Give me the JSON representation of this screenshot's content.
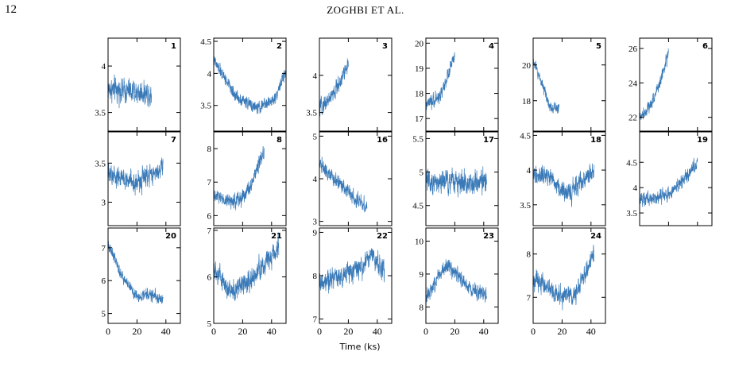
{
  "page": {
    "number": "12",
    "running_head": "ZOGHBI ET AL."
  },
  "figure": {
    "xlabel": "Time (ks)",
    "x_ticks": [
      "0",
      "20",
      "40"
    ]
  },
  "chart_data": [
    {
      "type": "line",
      "label": "1",
      "xlim": [
        0,
        50
      ],
      "ylim": [
        3.3,
        4.3
      ],
      "y_ticks": [
        3.5,
        4
      ],
      "y_tick_labels": [
        "3.5",
        "4"
      ],
      "duration": 30,
      "trend": [
        [
          0,
          3.75
        ],
        [
          30,
          3.7
        ]
      ],
      "noise": 0.16,
      "color": "#3a7ab8"
    },
    {
      "type": "line",
      "label": "2",
      "xlim": [
        0,
        50
      ],
      "ylim": [
        3.1,
        4.55
      ],
      "y_ticks": [
        3.5,
        4,
        4.5
      ],
      "y_tick_labels": [
        "3.5",
        "4",
        "4.5"
      ],
      "duration": 50,
      "trend": [
        [
          0,
          4.2
        ],
        [
          15,
          3.65
        ],
        [
          30,
          3.45
        ],
        [
          42,
          3.6
        ],
        [
          50,
          4.05
        ]
      ],
      "noise": 0.12,
      "color": "#3a7ab8"
    },
    {
      "type": "line",
      "label": "3",
      "xlim": [
        0,
        50
      ],
      "ylim": [
        3.25,
        4.5
      ],
      "y_ticks": [
        3.5,
        4
      ],
      "y_tick_labels": [
        "3.5",
        "4"
      ],
      "duration": 20,
      "trend": [
        [
          0,
          3.55
        ],
        [
          10,
          3.75
        ],
        [
          20,
          4.15
        ]
      ],
      "noise": 0.14,
      "color": "#3a7ab8"
    },
    {
      "type": "line",
      "label": "4",
      "xlim": [
        0,
        50
      ],
      "ylim": [
        16.5,
        20.2
      ],
      "y_ticks": [
        17,
        18,
        19,
        20
      ],
      "y_tick_labels": [
        "17",
        "18",
        "19",
        "20"
      ],
      "duration": 20,
      "trend": [
        [
          0,
          17.5
        ],
        [
          10,
          17.9
        ],
        [
          20,
          19.5
        ]
      ],
      "noise": 0.35,
      "color": "#3a7ab8"
    },
    {
      "type": "line",
      "label": "5",
      "xlim": [
        0,
        50
      ],
      "ylim": [
        16.3,
        21.5
      ],
      "y_ticks": [
        18,
        20
      ],
      "y_tick_labels": [
        "18",
        "20"
      ],
      "duration": 18,
      "trend": [
        [
          0,
          20.2
        ],
        [
          8,
          18.6
        ],
        [
          12,
          17.6
        ],
        [
          18,
          17.7
        ]
      ],
      "noise": 0.4,
      "color": "#3a7ab8"
    },
    {
      "type": "line",
      "label": "6",
      "xlim": [
        0,
        50
      ],
      "ylim": [
        21.2,
        26.6
      ],
      "y_ticks": [
        22,
        24,
        26
      ],
      "y_tick_labels": [
        "22",
        "24",
        "26"
      ],
      "duration": 20,
      "trend": [
        [
          0,
          22
        ],
        [
          8,
          22.8
        ],
        [
          14,
          24
        ],
        [
          20,
          25.8
        ]
      ],
      "noise": 0.45,
      "color": "#3a7ab8"
    },
    {
      "type": "line",
      "label": "7",
      "xlim": [
        0,
        50
      ],
      "ylim": [
        2.7,
        3.9
      ],
      "y_ticks": [
        3,
        3.5
      ],
      "y_tick_labels": [
        "3",
        "3.5"
      ],
      "duration": 38,
      "trend": [
        [
          0,
          3.35
        ],
        [
          20,
          3.25
        ],
        [
          38,
          3.45
        ]
      ],
      "noise": 0.17,
      "color": "#3a7ab8"
    },
    {
      "type": "line",
      "label": "8",
      "xlim": [
        0,
        50
      ],
      "ylim": [
        5.7,
        8.5
      ],
      "y_ticks": [
        6,
        7,
        8
      ],
      "y_tick_labels": [
        "6",
        "7",
        "8"
      ],
      "duration": 35,
      "trend": [
        [
          0,
          6.6
        ],
        [
          12,
          6.4
        ],
        [
          22,
          6.6
        ],
        [
          35,
          7.9
        ]
      ],
      "noise": 0.28,
      "color": "#3a7ab8"
    },
    {
      "type": "line",
      "label": "16",
      "xlim": [
        0,
        50
      ],
      "ylim": [
        2.9,
        5.1
      ],
      "y_ticks": [
        3,
        4,
        5
      ],
      "y_tick_labels": [
        "3",
        "4",
        "5"
      ],
      "duration": 33,
      "trend": [
        [
          0,
          4.4
        ],
        [
          10,
          4
        ],
        [
          20,
          3.7
        ],
        [
          33,
          3.3
        ]
      ],
      "noise": 0.22,
      "color": "#3a7ab8"
    },
    {
      "type": "line",
      "label": "17",
      "xlim": [
        0,
        50
      ],
      "ylim": [
        4.2,
        5.6
      ],
      "y_ticks": [
        4.5,
        5,
        5.5
      ],
      "y_tick_labels": [
        "4.5",
        "5",
        "5.5"
      ],
      "duration": 42,
      "trend": [
        [
          0,
          4.9
        ],
        [
          20,
          4.85
        ],
        [
          42,
          4.85
        ]
      ],
      "noise": 0.24,
      "color": "#3a7ab8"
    },
    {
      "type": "line",
      "label": "18",
      "xlim": [
        0,
        50
      ],
      "ylim": [
        3.2,
        4.55
      ],
      "y_ticks": [
        3.5,
        4,
        4.5
      ],
      "y_tick_labels": [
        "3.5",
        "4",
        "4.5"
      ],
      "duration": 42,
      "trend": [
        [
          0,
          3.95
        ],
        [
          12,
          3.9
        ],
        [
          22,
          3.65
        ],
        [
          42,
          4.0
        ]
      ],
      "noise": 0.18,
      "color": "#3a7ab8"
    },
    {
      "type": "line",
      "label": "19",
      "xlim": [
        0,
        50
      ],
      "ylim": [
        3.25,
        5.1
      ],
      "y_ticks": [
        3.5,
        4,
        4.5
      ],
      "y_tick_labels": [
        "3.5",
        "4",
        "4.5"
      ],
      "duration": 40,
      "trend": [
        [
          0,
          3.75
        ],
        [
          20,
          3.85
        ],
        [
          30,
          4.15
        ],
        [
          40,
          4.5
        ]
      ],
      "noise": 0.18,
      "color": "#3a7ab8"
    },
    {
      "type": "line",
      "label": "20",
      "xlim": [
        0,
        50
      ],
      "ylim": [
        4.7,
        7.6
      ],
      "y_ticks": [
        5,
        6,
        7
      ],
      "y_tick_labels": [
        "5",
        "6",
        "7"
      ],
      "duration": 38,
      "trend": [
        [
          0,
          7.1
        ],
        [
          10,
          6.1
        ],
        [
          20,
          5.5
        ],
        [
          28,
          5.6
        ],
        [
          38,
          5.4
        ]
      ],
      "noise": 0.22,
      "color": "#3a7ab8"
    },
    {
      "type": "line",
      "label": "21",
      "xlim": [
        0,
        50
      ],
      "ylim": [
        5,
        7.05
      ],
      "y_ticks": [
        5,
        6,
        7
      ],
      "y_tick_labels": [
        "5",
        "6",
        "7"
      ],
      "duration": 45,
      "trend": [
        [
          0,
          6.1
        ],
        [
          12,
          5.7
        ],
        [
          25,
          5.9
        ],
        [
          45,
          6.6
        ]
      ],
      "noise": 0.3,
      "color": "#3a7ab8"
    },
    {
      "type": "line",
      "label": "22",
      "xlim": [
        0,
        50
      ],
      "ylim": [
        6.9,
        9.1
      ],
      "y_ticks": [
        7,
        8,
        9
      ],
      "y_tick_labels": [
        "7",
        "8",
        "9"
      ],
      "duration": 45,
      "trend": [
        [
          0,
          7.8
        ],
        [
          15,
          8.0
        ],
        [
          30,
          8.2
        ],
        [
          36,
          8.5
        ],
        [
          45,
          8.1
        ]
      ],
      "noise": 0.3,
      "color": "#3a7ab8"
    },
    {
      "type": "line",
      "label": "23",
      "xlim": [
        0,
        50
      ],
      "ylim": [
        7.5,
        10.4
      ],
      "y_ticks": [
        8,
        9,
        10
      ],
      "y_tick_labels": [
        "8",
        "9",
        "10"
      ],
      "duration": 42,
      "trend": [
        [
          0,
          8.3
        ],
        [
          15,
          9.3
        ],
        [
          30,
          8.6
        ],
        [
          42,
          8.3
        ]
      ],
      "noise": 0.3,
      "color": "#3a7ab8"
    },
    {
      "type": "line",
      "label": "24",
      "xlim": [
        0,
        50
      ],
      "ylim": [
        6.4,
        8.6
      ],
      "y_ticks": [
        7,
        8
      ],
      "y_tick_labels": [
        "7",
        "8"
      ],
      "duration": 42,
      "trend": [
        [
          0,
          7.4
        ],
        [
          15,
          7.1
        ],
        [
          28,
          7.0
        ],
        [
          42,
          8.0
        ]
      ],
      "noise": 0.28,
      "color": "#3a7ab8"
    }
  ]
}
